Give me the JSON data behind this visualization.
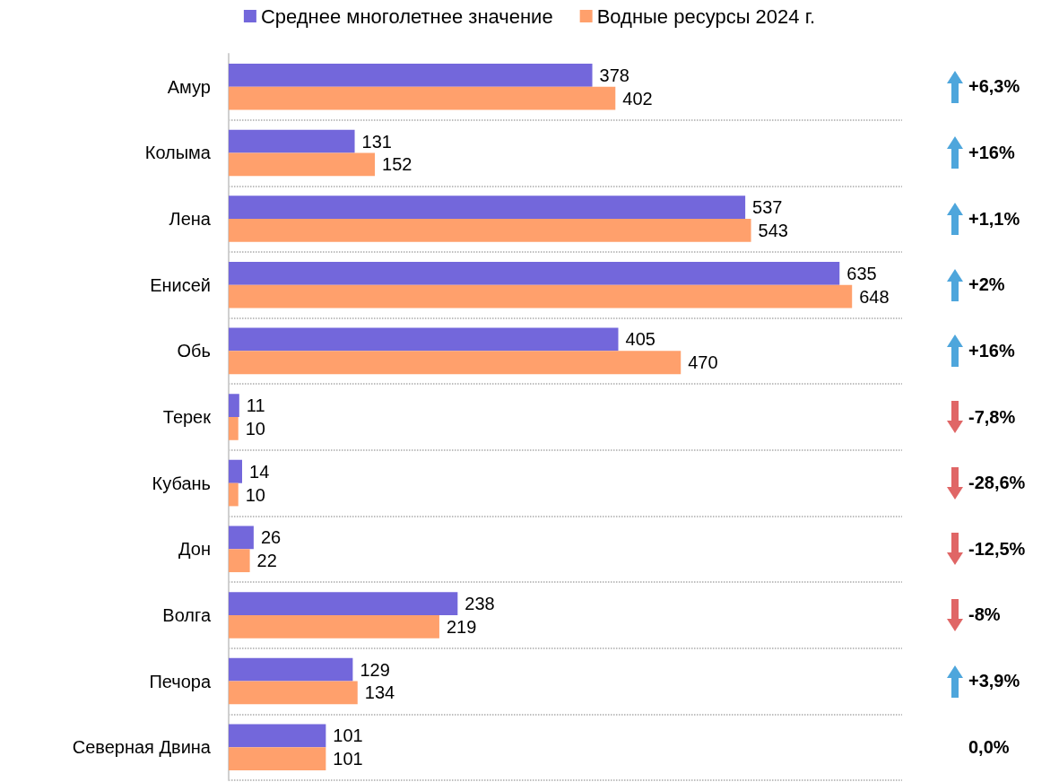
{
  "chart_data": {
    "type": "bar",
    "orientation": "horizontal",
    "data_labels": true,
    "grid": "y",
    "legend": "top",
    "categories": [
      "Амур",
      "Колыма",
      "Лена",
      "Енисей",
      "Обь",
      "Терек",
      "Кубань",
      "Дон",
      "Волга",
      "Печора",
      "Северная Двина"
    ],
    "series": [
      {
        "name": "Среднее многолетнее значение",
        "color": "#7367db",
        "values": [
          378,
          131,
          537,
          635,
          405,
          11,
          14,
          26,
          238,
          129,
          101
        ]
      },
      {
        "name": "Водные ресурсы 2024 г.",
        "color": "#ffa06c",
        "values": [
          402,
          152,
          543,
          648,
          470,
          10,
          10,
          22,
          219,
          134,
          101
        ]
      }
    ],
    "annotations": [
      "+6,3%",
      "+16%",
      "+1,1%",
      "+2%",
      "+16%",
      "-7,8%",
      "-28,6%",
      "-12,5%",
      "-8%",
      "+3,9%",
      "0,0%"
    ]
  }
}
